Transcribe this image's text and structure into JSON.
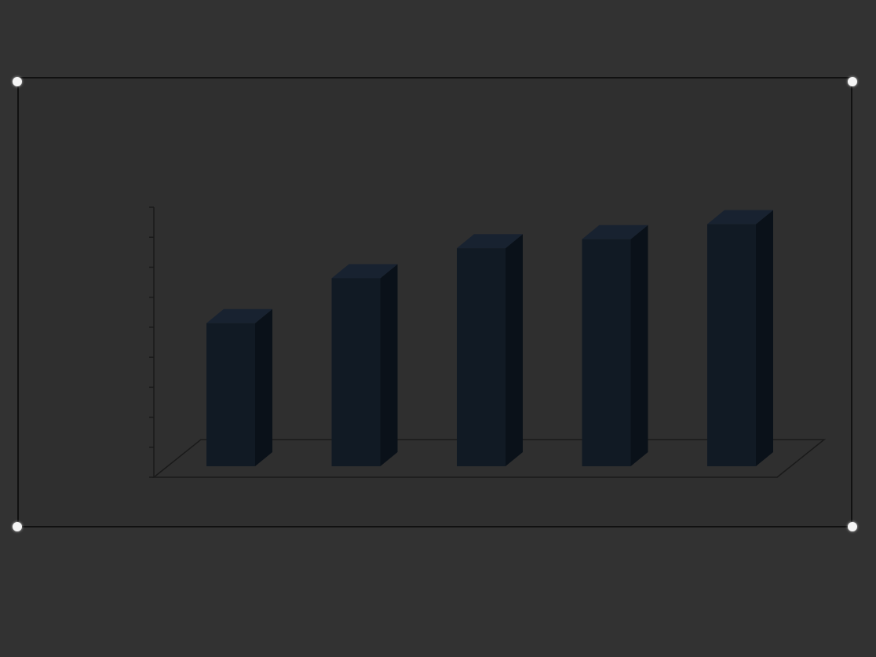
{
  "chart_data": {
    "type": "bar",
    "title_lines": [
      "",
      ""
    ],
    "categories": [
      "",
      "",
      "",
      "",
      ""
    ],
    "values": [
      55,
      70,
      80,
      83,
      88
    ],
    "data_labels": [
      "",
      "",
      "",
      "",
      ""
    ],
    "ylim": [
      0,
      90
    ],
    "yticks": [
      "",
      "",
      "",
      "",
      "",
      "",
      "",
      "",
      "",
      ""
    ],
    "style": "3d-column",
    "grid": false,
    "legend": "none",
    "colors": {
      "bar_front": "#111a24",
      "bar_side": "#0a1119",
      "bar_top": "#182230",
      "text": "#f7f7f7",
      "background": "#323232",
      "axis": "#1a1a1a"
    }
  }
}
